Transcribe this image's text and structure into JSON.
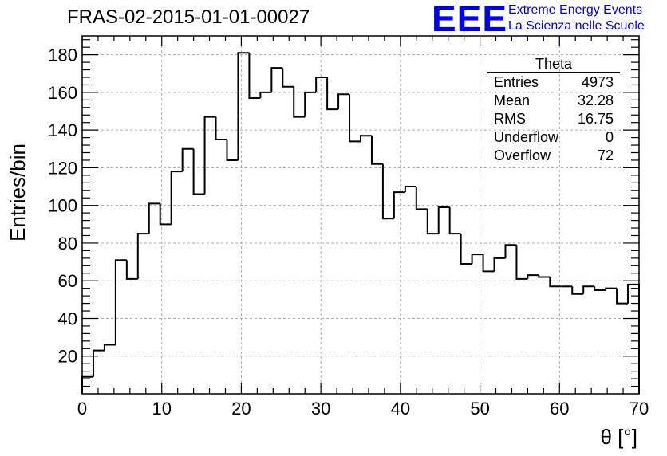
{
  "title": "FRAS-02-2015-01-01-00027",
  "logo": {
    "mark": "EEE",
    "line1": "Extreme Energy Events",
    "line2": "La Scienza nelle Scuole"
  },
  "stats_box": {
    "title": "Theta",
    "rows": [
      {
        "label": "Entries",
        "value": "4973"
      },
      {
        "label": "Mean",
        "value": "32.28"
      },
      {
        "label": "RMS",
        "value": "16.75"
      },
      {
        "label": "Underflow",
        "value": "0"
      },
      {
        "label": "Overflow",
        "value": "72"
      }
    ]
  },
  "chart_data": {
    "type": "bar",
    "style": "step-histogram",
    "xlabel": "θ [°]",
    "ylabel": "Entries/bin",
    "xlim": [
      0,
      70
    ],
    "ylim": [
      0,
      190
    ],
    "bin_width": 1.4,
    "x_ticks": [
      0,
      10,
      20,
      30,
      40,
      50,
      60,
      70
    ],
    "y_ticks": [
      20,
      40,
      60,
      80,
      100,
      120,
      140,
      160,
      180
    ],
    "grid": true,
    "values": [
      9,
      23,
      26,
      71,
      61,
      85,
      101,
      90,
      118,
      130,
      106,
      147,
      135,
      124,
      181,
      157,
      160,
      173,
      163,
      147,
      160,
      168,
      151,
      159,
      134,
      137,
      122,
      93,
      107,
      110,
      98,
      85,
      99,
      85,
      69,
      74,
      65,
      72,
      79,
      61,
      63,
      62,
      57,
      57,
      53,
      57,
      55,
      56,
      48,
      58
    ]
  }
}
